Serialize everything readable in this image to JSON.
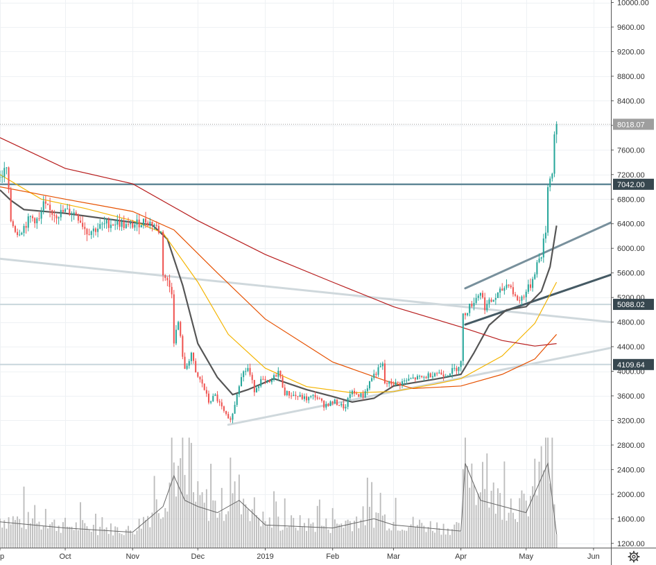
{
  "chart_data": {
    "type": "candlestick",
    "y_scale": "linear",
    "ylim": [
      1130,
      10040
    ],
    "x_range": [
      "2018-09-01",
      "2019-06-09"
    ],
    "grid": true,
    "y_ticks": [
      10000,
      9600,
      9200,
      8800,
      8400,
      8000,
      7600,
      7200,
      6800,
      6400,
      6000,
      5600,
      5200,
      4800,
      4400,
      4000,
      3600,
      3200,
      2800,
      2400,
      2000,
      1600,
      1200
    ],
    "y_tick_labels": [
      "10000.00",
      "9600.00",
      "9200.00",
      "8800.00",
      "8400.00",
      "8000.00",
      "7600.00",
      "7200.00",
      "6800.00",
      "6400.00",
      "6000.00",
      "5600.00",
      "5200.00",
      "4800.00",
      "4400.00",
      "4000.00",
      "3600.00",
      "3200.00",
      "2800.00",
      "2400.00",
      "2000.00",
      "1600.00",
      "1200.00"
    ],
    "x_ticks": [
      {
        "label": "p",
        "date": "2018-09-01"
      },
      {
        "label": "Oct",
        "date": "2018-10-01"
      },
      {
        "label": "Nov",
        "date": "2018-11-01"
      },
      {
        "label": "Dec",
        "date": "2018-12-01"
      },
      {
        "label": "2019",
        "date": "2019-01-01"
      },
      {
        "label": "Feb",
        "date": "2019-02-01"
      },
      {
        "label": "Mar",
        "date": "2019-03-01"
      },
      {
        "label": "Apr",
        "date": "2019-04-01"
      },
      {
        "label": "May",
        "date": "2019-05-01"
      },
      {
        "label": "Jun",
        "date": "2019-06-01"
      }
    ],
    "price_labels": [
      {
        "value": 8018.07,
        "text": "8018.07",
        "color": "#9e9e9e"
      },
      {
        "value": 7042.0,
        "text": "7042.00",
        "color": "#37474f"
      },
      {
        "value": 5088.02,
        "text": "5088.02",
        "color": "#37474f"
      },
      {
        "value": 4109.64,
        "text": "4109.64",
        "color": "#37474f"
      }
    ],
    "last_price": 8018.07,
    "up_color": "#26a69a",
    "down_color": "#ef5350",
    "volume_color": "#bdbdbd",
    "price_path": [
      [
        "2018-09-01",
        7150
      ],
      [
        "2018-09-04",
        7300
      ],
      [
        "2018-09-06",
        6450
      ],
      [
        "2018-09-09",
        6250
      ],
      [
        "2018-09-12",
        6350
      ],
      [
        "2018-09-15",
        6500
      ],
      [
        "2018-09-19",
        6450
      ],
      [
        "2018-09-21",
        6700
      ],
      [
        "2018-09-24",
        6600
      ],
      [
        "2018-09-27",
        6550
      ],
      [
        "2018-10-01",
        6600
      ],
      [
        "2018-10-06",
        6570
      ],
      [
        "2018-10-11",
        6270
      ],
      [
        "2018-10-14",
        6300
      ],
      [
        "2018-10-20",
        6400
      ],
      [
        "2018-10-25",
        6420
      ],
      [
        "2018-10-30",
        6350
      ],
      [
        "2018-11-03",
        6400
      ],
      [
        "2018-11-07",
        6450
      ],
      [
        "2018-11-11",
        6380
      ],
      [
        "2018-11-14",
        6250
      ],
      [
        "2018-11-15",
        5600
      ],
      [
        "2018-11-19",
        5300
      ],
      [
        "2018-11-20",
        4500
      ],
      [
        "2018-11-22",
        4800
      ],
      [
        "2018-11-25",
        4000
      ],
      [
        "2018-11-28",
        4300
      ],
      [
        "2018-11-30",
        3950
      ],
      [
        "2018-12-03",
        3800
      ],
      [
        "2018-12-06",
        3500
      ],
      [
        "2018-12-09",
        3600
      ],
      [
        "2018-12-12",
        3400
      ],
      [
        "2018-12-15",
        3200
      ],
      [
        "2018-12-17",
        3300
      ],
      [
        "2018-12-19",
        3650
      ],
      [
        "2018-12-21",
        3950
      ],
      [
        "2018-12-24",
        4050
      ],
      [
        "2018-12-27",
        3700
      ],
      [
        "2018-12-30",
        3850
      ],
      [
        "2019-01-03",
        3800
      ],
      [
        "2019-01-07",
        4000
      ],
      [
        "2019-01-10",
        3650
      ],
      [
        "2019-01-15",
        3600
      ],
      [
        "2019-01-20",
        3550
      ],
      [
        "2019-01-24",
        3600
      ],
      [
        "2019-01-28",
        3450
      ],
      [
        "2019-02-02",
        3500
      ],
      [
        "2019-02-07",
        3400
      ],
      [
        "2019-02-09",
        3650
      ],
      [
        "2019-02-15",
        3600
      ],
      [
        "2019-02-19",
        3900
      ],
      [
        "2019-02-24",
        4100
      ],
      [
        "2019-02-25",
        3800
      ],
      [
        "2019-03-03",
        3800
      ],
      [
        "2019-03-10",
        3880
      ],
      [
        "2019-03-15",
        3900
      ],
      [
        "2019-03-20",
        3980
      ],
      [
        "2019-03-25",
        3950
      ],
      [
        "2019-03-30",
        4050
      ],
      [
        "2019-04-01",
        4150
      ],
      [
        "2019-04-02",
        4900
      ],
      [
        "2019-04-05",
        5050
      ],
      [
        "2019-04-10",
        5300
      ],
      [
        "2019-04-12",
        5050
      ],
      [
        "2019-04-17",
        5200
      ],
      [
        "2019-04-23",
        5450
      ],
      [
        "2019-04-26",
        5200
      ],
      [
        "2019-04-28",
        5150
      ],
      [
        "2019-05-03",
        5400
      ],
      [
        "2019-05-06",
        5750
      ],
      [
        "2019-05-08",
        5900
      ],
      [
        "2019-05-10",
        6300
      ],
      [
        "2019-05-11",
        7000
      ],
      [
        "2019-05-12",
        7200
      ],
      [
        "2019-05-13",
        7200
      ],
      [
        "2019-05-14",
        7900
      ],
      [
        "2019-05-15",
        8018
      ]
    ],
    "volume_path": [
      [
        "2018-09-01",
        1550
      ],
      [
        "2018-10-01",
        1450
      ],
      [
        "2018-11-01",
        1380
      ],
      [
        "2018-11-15",
        1800
      ],
      [
        "2018-11-20",
        2300
      ],
      [
        "2018-11-25",
        1900
      ],
      [
        "2018-12-01",
        1800
      ],
      [
        "2018-12-10",
        1700
      ],
      [
        "2018-12-20",
        1900
      ],
      [
        "2019-01-01",
        1500
      ],
      [
        "2019-02-01",
        1450
      ],
      [
        "2019-02-20",
        1600
      ],
      [
        "2019-03-01",
        1500
      ],
      [
        "2019-04-01",
        1400
      ],
      [
        "2019-04-03",
        2500
      ],
      [
        "2019-04-10",
        1900
      ],
      [
        "2019-05-01",
        1700
      ],
      [
        "2019-05-11",
        2500
      ],
      [
        "2019-05-15",
        1350
      ]
    ],
    "moving_averages": [
      {
        "color": "#555555",
        "width": 2.2,
        "points": [
          [
            "2018-09-01",
            6950
          ],
          [
            "2018-09-06",
            6780
          ],
          [
            "2018-09-12",
            6630
          ],
          [
            "2018-10-01",
            6570
          ],
          [
            "2018-11-10",
            6380
          ],
          [
            "2018-11-17",
            6150
          ],
          [
            "2018-11-24",
            5400
          ],
          [
            "2018-12-01",
            4450
          ],
          [
            "2018-12-10",
            3900
          ],
          [
            "2018-12-17",
            3620
          ],
          [
            "2018-12-24",
            3700
          ],
          [
            "2019-01-05",
            3880
          ],
          [
            "2019-01-20",
            3700
          ],
          [
            "2019-02-01",
            3590
          ],
          [
            "2019-02-10",
            3500
          ],
          [
            "2019-02-20",
            3560
          ],
          [
            "2019-03-01",
            3760
          ],
          [
            "2019-03-20",
            3870
          ],
          [
            "2019-04-01",
            3950
          ],
          [
            "2019-04-07",
            4300
          ],
          [
            "2019-04-14",
            4750
          ],
          [
            "2019-04-22",
            5000
          ],
          [
            "2019-05-01",
            5050
          ],
          [
            "2019-05-08",
            5300
          ],
          [
            "2019-05-12",
            5700
          ],
          [
            "2019-05-15",
            6370
          ]
        ]
      },
      {
        "color": "#f4b400",
        "width": 1.2,
        "points": [
          [
            "2018-09-01",
            7200
          ],
          [
            "2018-09-20",
            6800
          ],
          [
            "2018-10-10",
            6650
          ],
          [
            "2018-11-01",
            6450
          ],
          [
            "2018-11-15",
            6250
          ],
          [
            "2018-12-01",
            5450
          ],
          [
            "2018-12-15",
            4600
          ],
          [
            "2019-01-01",
            4050
          ],
          [
            "2019-01-20",
            3750
          ],
          [
            "2019-02-10",
            3650
          ],
          [
            "2019-03-01",
            3670
          ],
          [
            "2019-03-20",
            3790
          ],
          [
            "2019-04-01",
            3880
          ],
          [
            "2019-04-20",
            4250
          ],
          [
            "2019-05-05",
            4780
          ],
          [
            "2019-05-15",
            5450
          ]
        ]
      },
      {
        "color": "#e65100",
        "width": 1.2,
        "points": [
          [
            "2018-09-01",
            7000
          ],
          [
            "2018-10-01",
            6800
          ],
          [
            "2018-11-01",
            6600
          ],
          [
            "2018-11-20",
            6300
          ],
          [
            "2018-12-10",
            5600
          ],
          [
            "2019-01-01",
            4850
          ],
          [
            "2019-02-01",
            4150
          ],
          [
            "2019-02-25",
            3850
          ],
          [
            "2019-03-10",
            3720
          ],
          [
            "2019-04-01",
            3760
          ],
          [
            "2019-04-20",
            3950
          ],
          [
            "2019-05-05",
            4200
          ],
          [
            "2019-05-15",
            4600
          ]
        ]
      },
      {
        "color": "#b71c1c",
        "width": 1.2,
        "points": [
          [
            "2018-09-01",
            7800
          ],
          [
            "2018-10-01",
            7300
          ],
          [
            "2018-11-01",
            7050
          ],
          [
            "2018-12-01",
            6450
          ],
          [
            "2019-01-01",
            5900
          ],
          [
            "2019-02-01",
            5450
          ],
          [
            "2019-03-01",
            5050
          ],
          [
            "2019-04-01",
            4720
          ],
          [
            "2019-04-20",
            4500
          ],
          [
            "2019-05-05",
            4410
          ],
          [
            "2019-05-15",
            4450
          ]
        ]
      }
    ],
    "drawings": [
      {
        "kind": "horizontal",
        "value": 7042,
        "color": "#5f8796",
        "width": 2.5
      },
      {
        "kind": "horizontal",
        "value": 5088,
        "color": "#c8d6dc",
        "width": 2
      },
      {
        "kind": "horizontal",
        "value": 4110,
        "color": "#c8d6dc",
        "width": 2
      },
      {
        "kind": "trend",
        "from": [
          "2018-09-01",
          5830
        ],
        "to": [
          "2019-06-09",
          4800
        ],
        "color": "#cfd8dc",
        "width": 3
      },
      {
        "kind": "trend",
        "from": [
          "2018-12-15",
          3130
        ],
        "to": [
          "2019-06-09",
          4380
        ],
        "color": "#cfd8dc",
        "width": 3
      },
      {
        "kind": "trend",
        "from": [
          "2019-04-03",
          5350
        ],
        "to": [
          "2019-06-09",
          6420
        ],
        "color": "#78909c",
        "width": 3
      },
      {
        "kind": "trend",
        "from": [
          "2019-04-03",
          4760
        ],
        "to": [
          "2019-06-09",
          5570
        ],
        "color": "#455a64",
        "width": 3
      }
    ]
  },
  "ui": {
    "settings_icon": "gear-icon"
  }
}
